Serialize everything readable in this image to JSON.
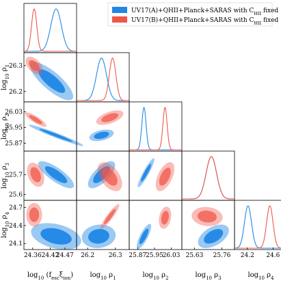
{
  "chart_data": {
    "type": "corner",
    "colors": {
      "A": "#1f88e5",
      "B": "#f0574a"
    },
    "legend": {
      "placement": "top-right",
      "entries": [
        {
          "key": "A",
          "prefix": "UV17(A)+QHII+Planck+SARAS with C",
          "sub": "HII",
          "suffix": " fixed"
        },
        {
          "key": "B",
          "prefix": "UV17(B)+QHII+Planck+SARAS with C",
          "sub": "HII",
          "suffix": " fixed"
        }
      ]
    },
    "parameters": [
      {
        "id": "fesc",
        "label_main": "log",
        "label_sub": "10",
        "label_rest": "(f",
        "label_sub2": "esc",
        "label_mid": "ξ",
        "label_sub3": "ion",
        "label_end": ")",
        "range": [
          24.33,
          24.51
        ],
        "ticks": [
          "24.36",
          "24.42",
          "24.47"
        ],
        "tick_values": [
          24.36,
          24.42,
          24.47
        ]
      },
      {
        "id": "rho1",
        "label_main": "log",
        "label_sub": "10",
        "label_rest": "ρ",
        "label_sub2": "1",
        "range": [
          26.16,
          26.35
        ],
        "ticks": [
          "26.2",
          "26.3"
        ],
        "tick_values": [
          26.2,
          26.3
        ]
      },
      {
        "id": "rho2",
        "label_main": "log",
        "label_sub": "10",
        "label_rest": "ρ",
        "label_sub2": "2",
        "range": [
          25.83,
          26.08
        ],
        "ticks": [
          "25.87",
          "25.95",
          "26.03"
        ],
        "tick_values": [
          25.87,
          25.95,
          26.03
        ]
      },
      {
        "id": "rho3",
        "label_main": "log",
        "label_sub": "10",
        "label_rest": "ρ",
        "label_sub2": "3",
        "range": [
          25.57,
          25.82
        ],
        "ticks": [
          "25.63",
          "25.76"
        ],
        "ticks_y": [
          "25.6",
          "25.7"
        ],
        "tick_values": [
          25.63,
          25.76
        ],
        "tick_values_y": [
          25.6,
          25.7
        ]
      },
      {
        "id": "rho4",
        "label_main": "log",
        "label_sub": "10",
        "label_rest": "ρ",
        "label_sub2": "4",
        "range": [
          24.0,
          24.82
        ],
        "ticks": [
          "24.2",
          "24.6"
        ],
        "ticks_y": [
          "24.1",
          "24.4",
          "24.7"
        ],
        "tick_values": [
          24.2,
          24.6
        ],
        "tick_values_y": [
          24.1,
          24.4,
          24.7
        ]
      }
    ],
    "marginals": {
      "A": [
        {
          "mean": 24.44,
          "sigma": 0.018
        },
        {
          "mean": 26.25,
          "sigma": 0.018
        },
        {
          "mean": 25.9,
          "sigma": 0.01
        },
        {
          "mean": 25.71,
          "sigma": 0.025
        },
        {
          "mean": 24.21,
          "sigma": 0.055
        }
      ],
      "B": [
        {
          "mean": 24.365,
          "sigma": 0.009
        },
        {
          "mean": 26.29,
          "sigma": 0.012
        },
        {
          "mean": 26.0,
          "sigma": 0.01
        },
        {
          "mean": 25.71,
          "sigma": 0.025
        },
        {
          "mean": 24.55,
          "sigma": 0.05
        }
      ]
    },
    "contours": [
      {
        "row": 1,
        "col": 0,
        "A": {
          "cx": 24.425,
          "cy": 26.24,
          "sx": 0.03,
          "sy": 0.03,
          "rho": -0.8
        },
        "B": {
          "cx": 24.365,
          "cy": 26.3,
          "sx": 0.012,
          "sy": 0.014,
          "rho": -0.5
        }
      },
      {
        "row": 2,
        "col": 0,
        "A": {
          "cx": 24.44,
          "cy": 25.91,
          "sx": 0.038,
          "sy": 0.022,
          "rho": -0.97
        },
        "B": {
          "cx": 24.37,
          "cy": 25.99,
          "sx": 0.015,
          "sy": 0.015,
          "rho": -0.85
        }
      },
      {
        "row": 2,
        "col": 1,
        "A": {
          "cx": 26.25,
          "cy": 25.91,
          "sx": 0.018,
          "sy": 0.012,
          "rho": 0.4
        },
        "B": {
          "cx": 26.28,
          "cy": 26.0,
          "sx": 0.02,
          "sy": 0.015,
          "rho": 0.55
        }
      },
      {
        "row": 2,
        "col": 2,
        "A": null,
        "B": null
      },
      {
        "row": 3,
        "col": 0,
        "A": {
          "cx": 24.44,
          "cy": 25.7,
          "sx": 0.025,
          "sy": 0.028,
          "rho": -0.8
        },
        "B": {
          "cx": 24.37,
          "cy": 25.7,
          "sx": 0.012,
          "sy": 0.025,
          "rho": -0.35
        }
      },
      {
        "row": 3,
        "col": 1,
        "A": {
          "cx": 26.25,
          "cy": 25.7,
          "sx": 0.02,
          "sy": 0.028,
          "rho": 0.7
        },
        "B": {
          "cx": 26.28,
          "cy": 25.69,
          "sx": 0.018,
          "sy": 0.03,
          "rho": -0.5
        }
      },
      {
        "row": 3,
        "col": 2,
        "A": {
          "cx": 25.91,
          "cy": 25.71,
          "sx": 0.016,
          "sy": 0.03,
          "rho": 0.92
        },
        "B": {
          "cx": 26.0,
          "cy": 25.69,
          "sx": 0.018,
          "sy": 0.03,
          "rho": 0.55
        }
      },
      {
        "row": 4,
        "col": 0,
        "A": {
          "cx": 24.44,
          "cy": 24.22,
          "sx": 0.035,
          "sy": 0.09,
          "rho": -0.35
        },
        "B": {
          "cx": 24.365,
          "cy": 24.58,
          "sx": 0.011,
          "sy": 0.08,
          "rho": 0.0
        }
      },
      {
        "row": 4,
        "col": 1,
        "A": {
          "cx": 26.24,
          "cy": 24.22,
          "sx": 0.025,
          "sy": 0.08,
          "rho": 0.1
        },
        "B": {
          "cx": 26.28,
          "cy": 24.55,
          "sx": 0.014,
          "sy": 0.085,
          "rho": 0.92
        }
      },
      {
        "row": 4,
        "col": 2,
        "A": {
          "cx": 25.9,
          "cy": 24.22,
          "sx": 0.014,
          "sy": 0.085,
          "rho": 0.8
        },
        "B": {
          "cx": 26.0,
          "cy": 24.53,
          "sx": 0.012,
          "sy": 0.075,
          "rho": 0.25
        }
      },
      {
        "row": 4,
        "col": 3,
        "A": {
          "cx": 25.72,
          "cy": 24.22,
          "sx": 0.03,
          "sy": 0.08,
          "rho": 0.5
        },
        "B": {
          "cx": 25.69,
          "cy": 24.55,
          "sx": 0.03,
          "sy": 0.065,
          "rho": -0.1
        }
      }
    ]
  }
}
